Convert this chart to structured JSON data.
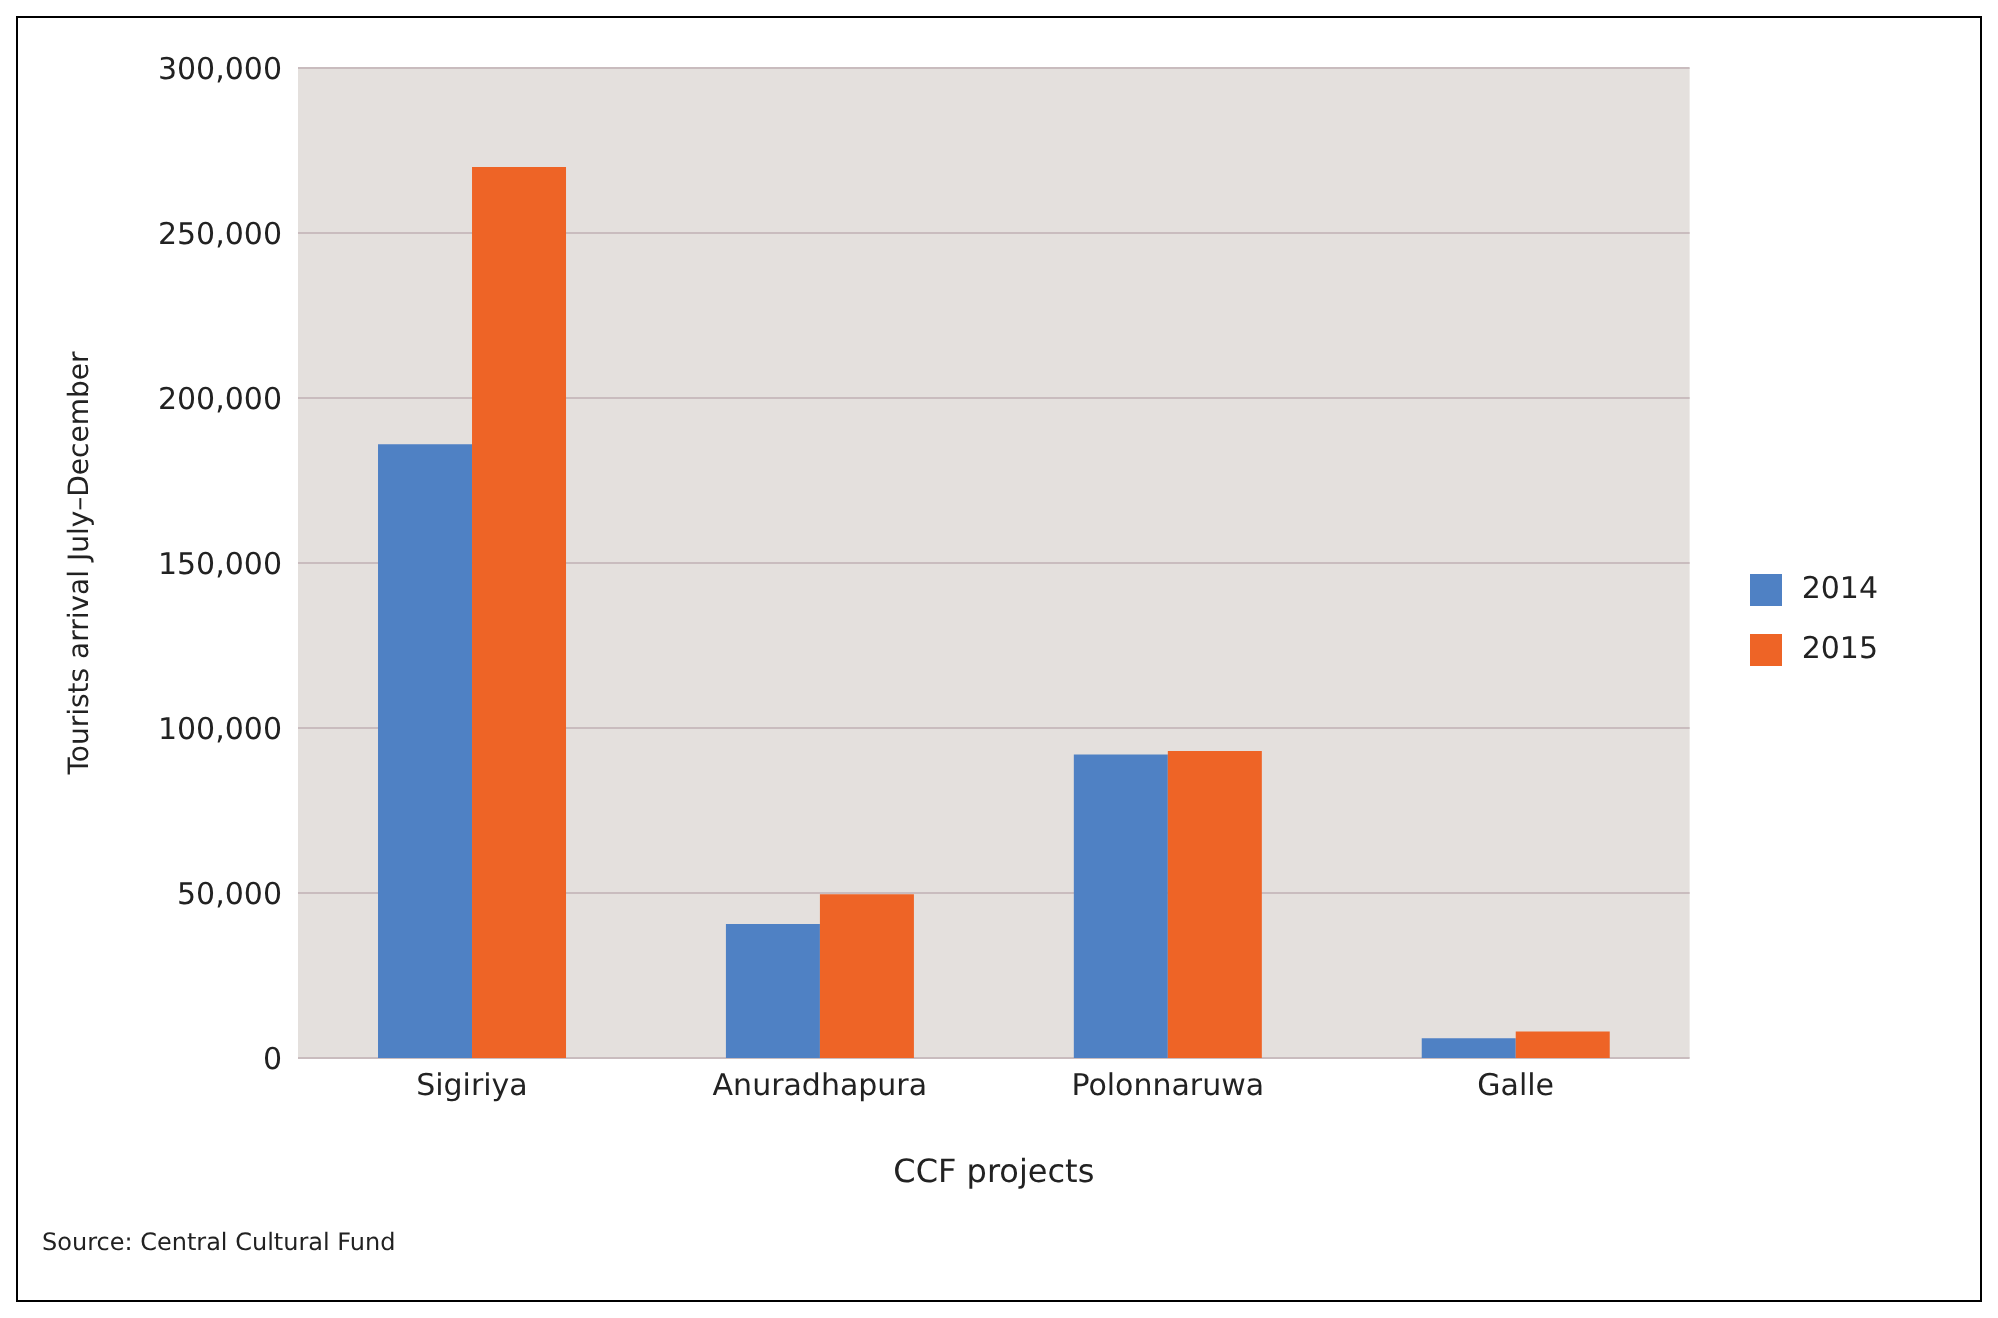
{
  "chart_data": {
    "type": "bar",
    "xlabel": "CCF projects",
    "ylabel": "Tourists arrival July–December",
    "categories": [
      "Sigiriya",
      "Anuradhapura",
      "Polonnaruwa",
      "Galle"
    ],
    "series": [
      {
        "name": "2014",
        "color": "#4f81c4",
        "values": [
          186000,
          40600,
          92000,
          6000
        ]
      },
      {
        "name": "2015",
        "color": "#ee6426",
        "values": [
          270000,
          49600,
          93000,
          8000
        ]
      }
    ],
    "ylim": [
      0,
      300000
    ],
    "yticks": [
      0,
      {
        "value": 50000,
        "label": "50,000"
      },
      {
        "value": 100000,
        "label": "100,000"
      },
      {
        "value": 150000,
        "label": "150,000"
      },
      {
        "value": 200000,
        "label": "200,000"
      },
      {
        "value": 250000,
        "label": "250,000"
      },
      {
        "value": 300000,
        "label": "300,000"
      }
    ],
    "grid": "y",
    "legend": "right",
    "annotations": [
      "Source: Central Cultural Fund"
    ]
  }
}
